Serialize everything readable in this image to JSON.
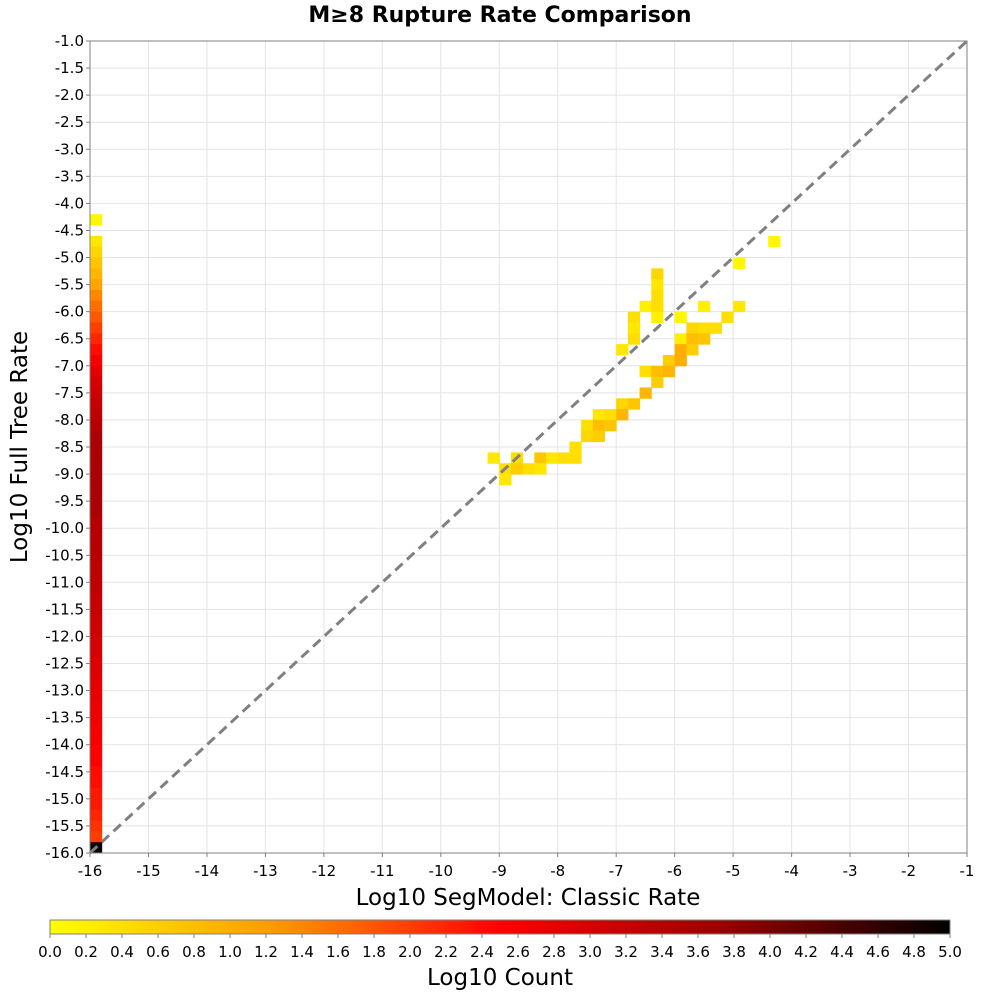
{
  "chart_data": {
    "type": "heatmap",
    "title": "M≥8 Rupture Rate Comparison",
    "xlabel": "Log10 SegModel: Classic Rate",
    "ylabel": "Log10 Full Tree Rate",
    "xlim": [
      -16,
      -1
    ],
    "ylim": [
      -16,
      -1
    ],
    "x_ticks": [
      "-16",
      "-15",
      "-14",
      "-13",
      "-12",
      "-11",
      "-10",
      "-9",
      "-8",
      "-7",
      "-6",
      "-5",
      "-4",
      "-3",
      "-2",
      "-1"
    ],
    "y_ticks": [
      "-1.0",
      "-1.5",
      "-2.0",
      "-2.5",
      "-3.0",
      "-3.5",
      "-4.0",
      "-4.5",
      "-5.0",
      "-5.5",
      "-6.0",
      "-6.5",
      "-7.0",
      "-7.5",
      "-8.0",
      "-8.5",
      "-9.0",
      "-9.5",
      "-10.0",
      "-10.5",
      "-11.0",
      "-11.5",
      "-12.0",
      "-12.5",
      "-13.0",
      "-13.5",
      "-14.0",
      "-14.5",
      "-15.0",
      "-15.5",
      "-16.0"
    ],
    "grid": true,
    "diagonal_reference_line": true,
    "bin_size": 0.2,
    "colorbar": {
      "label": "Log10 Count",
      "range": [
        0,
        5
      ],
      "ticks": [
        "0.0",
        "0.2",
        "0.4",
        "0.6",
        "0.8",
        "1.0",
        "1.2",
        "1.4",
        "1.6",
        "1.8",
        "2.0",
        "2.2",
        "2.4",
        "2.6",
        "2.8",
        "3.0",
        "3.2",
        "3.4",
        "3.6",
        "3.8",
        "4.0",
        "4.2",
        "4.4",
        "4.6",
        "4.8",
        "5.0"
      ],
      "colors": [
        "#ffff00",
        "#ff9900",
        "#ff0000",
        "#990000",
        "#000000"
      ]
    },
    "cells": [
      {
        "x": -15.9,
        "y": -4.3,
        "v": 0.1
      },
      {
        "x": -15.9,
        "y": -4.7,
        "v": 0.3
      },
      {
        "x": -15.9,
        "y": -4.9,
        "v": 0.5
      },
      {
        "x": -15.9,
        "y": -5.1,
        "v": 0.7
      },
      {
        "x": -15.9,
        "y": -5.3,
        "v": 0.9
      },
      {
        "x": -15.9,
        "y": -5.5,
        "v": 1.1
      },
      {
        "x": -15.9,
        "y": -5.7,
        "v": 1.4
      },
      {
        "x": -15.9,
        "y": -5.9,
        "v": 1.6
      },
      {
        "x": -15.9,
        "y": -6.1,
        "v": 1.8
      },
      {
        "x": -15.9,
        "y": -6.3,
        "v": 2.0
      },
      {
        "x": -15.9,
        "y": -6.5,
        "v": 2.2
      },
      {
        "x": -15.9,
        "y": -6.7,
        "v": 2.4
      },
      {
        "x": -15.9,
        "y": -6.9,
        "v": 2.6
      },
      {
        "x": -15.9,
        "y": -7.1,
        "v": 2.8
      },
      {
        "x": -15.9,
        "y": -7.3,
        "v": 3.0
      },
      {
        "x": -15.9,
        "y": -7.5,
        "v": 3.1
      },
      {
        "x": -15.9,
        "y": -7.7,
        "v": 3.2
      },
      {
        "x": -15.9,
        "y": -7.9,
        "v": 3.3
      },
      {
        "x": -15.9,
        "y": -8.1,
        "v": 3.4
      },
      {
        "x": -15.9,
        "y": -8.3,
        "v": 3.5
      },
      {
        "x": -15.9,
        "y": -8.5,
        "v": 3.5
      },
      {
        "x": -15.9,
        "y": -8.7,
        "v": 3.5
      },
      {
        "x": -15.9,
        "y": -8.9,
        "v": 3.5
      },
      {
        "x": -15.9,
        "y": -9.1,
        "v": 3.5
      },
      {
        "x": -15.9,
        "y": -9.3,
        "v": 3.5
      },
      {
        "x": -15.9,
        "y": -9.5,
        "v": 3.5
      },
      {
        "x": -15.9,
        "y": -9.7,
        "v": 3.5
      },
      {
        "x": -15.9,
        "y": -9.9,
        "v": 3.4
      },
      {
        "x": -15.9,
        "y": -10.1,
        "v": 3.4
      },
      {
        "x": -15.9,
        "y": -10.3,
        "v": 3.4
      },
      {
        "x": -15.9,
        "y": -10.5,
        "v": 3.4
      },
      {
        "x": -15.9,
        "y": -10.7,
        "v": 3.3
      },
      {
        "x": -15.9,
        "y": -10.9,
        "v": 3.3
      },
      {
        "x": -15.9,
        "y": -11.1,
        "v": 3.3
      },
      {
        "x": -15.9,
        "y": -11.3,
        "v": 3.2
      },
      {
        "x": -15.9,
        "y": -11.5,
        "v": 3.2
      },
      {
        "x": -15.9,
        "y": -11.7,
        "v": 3.1
      },
      {
        "x": -15.9,
        "y": -11.9,
        "v": 3.1
      },
      {
        "x": -15.9,
        "y": -12.1,
        "v": 3.0
      },
      {
        "x": -15.9,
        "y": -12.3,
        "v": 3.0
      },
      {
        "x": -15.9,
        "y": -12.5,
        "v": 2.9
      },
      {
        "x": -15.9,
        "y": -12.7,
        "v": 2.9
      },
      {
        "x": -15.9,
        "y": -12.9,
        "v": 2.8
      },
      {
        "x": -15.9,
        "y": -13.1,
        "v": 2.8
      },
      {
        "x": -15.9,
        "y": -13.3,
        "v": 2.7
      },
      {
        "x": -15.9,
        "y": -13.5,
        "v": 2.7
      },
      {
        "x": -15.9,
        "y": -13.7,
        "v": 2.6
      },
      {
        "x": -15.9,
        "y": -13.9,
        "v": 2.6
      },
      {
        "x": -15.9,
        "y": -14.1,
        "v": 2.5
      },
      {
        "x": -15.9,
        "y": -14.3,
        "v": 2.5
      },
      {
        "x": -15.9,
        "y": -14.5,
        "v": 2.4
      },
      {
        "x": -15.9,
        "y": -14.7,
        "v": 2.4
      },
      {
        "x": -15.9,
        "y": -14.9,
        "v": 2.3
      },
      {
        "x": -15.9,
        "y": -15.1,
        "v": 2.3
      },
      {
        "x": -15.9,
        "y": -15.3,
        "v": 2.2
      },
      {
        "x": -15.9,
        "y": -15.5,
        "v": 2.1
      },
      {
        "x": -15.9,
        "y": -15.7,
        "v": 2.0
      },
      {
        "x": -15.9,
        "y": -15.9,
        "v": 4.9
      },
      {
        "x": -4.3,
        "y": -4.7,
        "v": 0.1
      },
      {
        "x": -4.9,
        "y": -5.1,
        "v": 0.1
      },
      {
        "x": -6.3,
        "y": -5.3,
        "v": 0.5
      },
      {
        "x": -6.3,
        "y": -5.5,
        "v": 0.3
      },
      {
        "x": -6.3,
        "y": -5.7,
        "v": 0.4
      },
      {
        "x": -6.5,
        "y": -5.9,
        "v": 0.2
      },
      {
        "x": -6.3,
        "y": -5.9,
        "v": 0.4
      },
      {
        "x": -5.5,
        "y": -5.9,
        "v": 0.2
      },
      {
        "x": -4.9,
        "y": -5.9,
        "v": 0.3
      },
      {
        "x": -6.7,
        "y": -6.1,
        "v": 0.4
      },
      {
        "x": -6.3,
        "y": -6.1,
        "v": 0.2
      },
      {
        "x": -5.9,
        "y": -6.1,
        "v": 0.1
      },
      {
        "x": -5.1,
        "y": -6.1,
        "v": 0.4
      },
      {
        "x": -6.7,
        "y": -6.3,
        "v": 0.3
      },
      {
        "x": -5.7,
        "y": -6.3,
        "v": 0.5
      },
      {
        "x": -5.5,
        "y": -6.3,
        "v": 0.4
      },
      {
        "x": -5.3,
        "y": -6.3,
        "v": 0.4
      },
      {
        "x": -6.7,
        "y": -6.5,
        "v": 0.4
      },
      {
        "x": -5.9,
        "y": -6.5,
        "v": 0.2
      },
      {
        "x": -5.7,
        "y": -6.5,
        "v": 0.8
      },
      {
        "x": -5.5,
        "y": -6.5,
        "v": 0.7
      },
      {
        "x": -6.9,
        "y": -6.7,
        "v": 0.3
      },
      {
        "x": -5.9,
        "y": -6.7,
        "v": 1.0
      },
      {
        "x": -5.7,
        "y": -6.7,
        "v": 0.6
      },
      {
        "x": -6.1,
        "y": -6.9,
        "v": 0.6
      },
      {
        "x": -5.9,
        "y": -6.9,
        "v": 1.0
      },
      {
        "x": -6.5,
        "y": -7.1,
        "v": 0.4
      },
      {
        "x": -6.3,
        "y": -7.1,
        "v": 0.8
      },
      {
        "x": -6.1,
        "y": -7.1,
        "v": 0.9
      },
      {
        "x": -6.3,
        "y": -7.3,
        "v": 0.6
      },
      {
        "x": -6.5,
        "y": -7.5,
        "v": 0.9
      },
      {
        "x": -6.9,
        "y": -7.7,
        "v": 0.5
      },
      {
        "x": -6.7,
        "y": -7.7,
        "v": 0.7
      },
      {
        "x": -7.3,
        "y": -7.9,
        "v": 0.3
      },
      {
        "x": -7.1,
        "y": -7.9,
        "v": 0.4
      },
      {
        "x": -6.9,
        "y": -7.9,
        "v": 0.9
      },
      {
        "x": -7.5,
        "y": -8.1,
        "v": 0.4
      },
      {
        "x": -7.3,
        "y": -8.1,
        "v": 0.8
      },
      {
        "x": -7.1,
        "y": -8.1,
        "v": 0.7
      },
      {
        "x": -7.5,
        "y": -8.3,
        "v": 0.5
      },
      {
        "x": -7.3,
        "y": -8.3,
        "v": 0.6
      },
      {
        "x": -7.7,
        "y": -8.5,
        "v": 0.4
      },
      {
        "x": -9.1,
        "y": -8.7,
        "v": 0.3
      },
      {
        "x": -8.7,
        "y": -8.7,
        "v": 0.4
      },
      {
        "x": -8.3,
        "y": -8.7,
        "v": 0.7
      },
      {
        "x": -8.1,
        "y": -8.7,
        "v": 0.3
      },
      {
        "x": -7.9,
        "y": -8.7,
        "v": 0.4
      },
      {
        "x": -7.7,
        "y": -8.7,
        "v": 0.4
      },
      {
        "x": -8.9,
        "y": -8.9,
        "v": 0.4
      },
      {
        "x": -8.7,
        "y": -8.9,
        "v": 0.6
      },
      {
        "x": -8.5,
        "y": -8.9,
        "v": 0.4
      },
      {
        "x": -8.3,
        "y": -8.9,
        "v": 0.3
      },
      {
        "x": -8.9,
        "y": -9.1,
        "v": 0.3
      }
    ]
  }
}
